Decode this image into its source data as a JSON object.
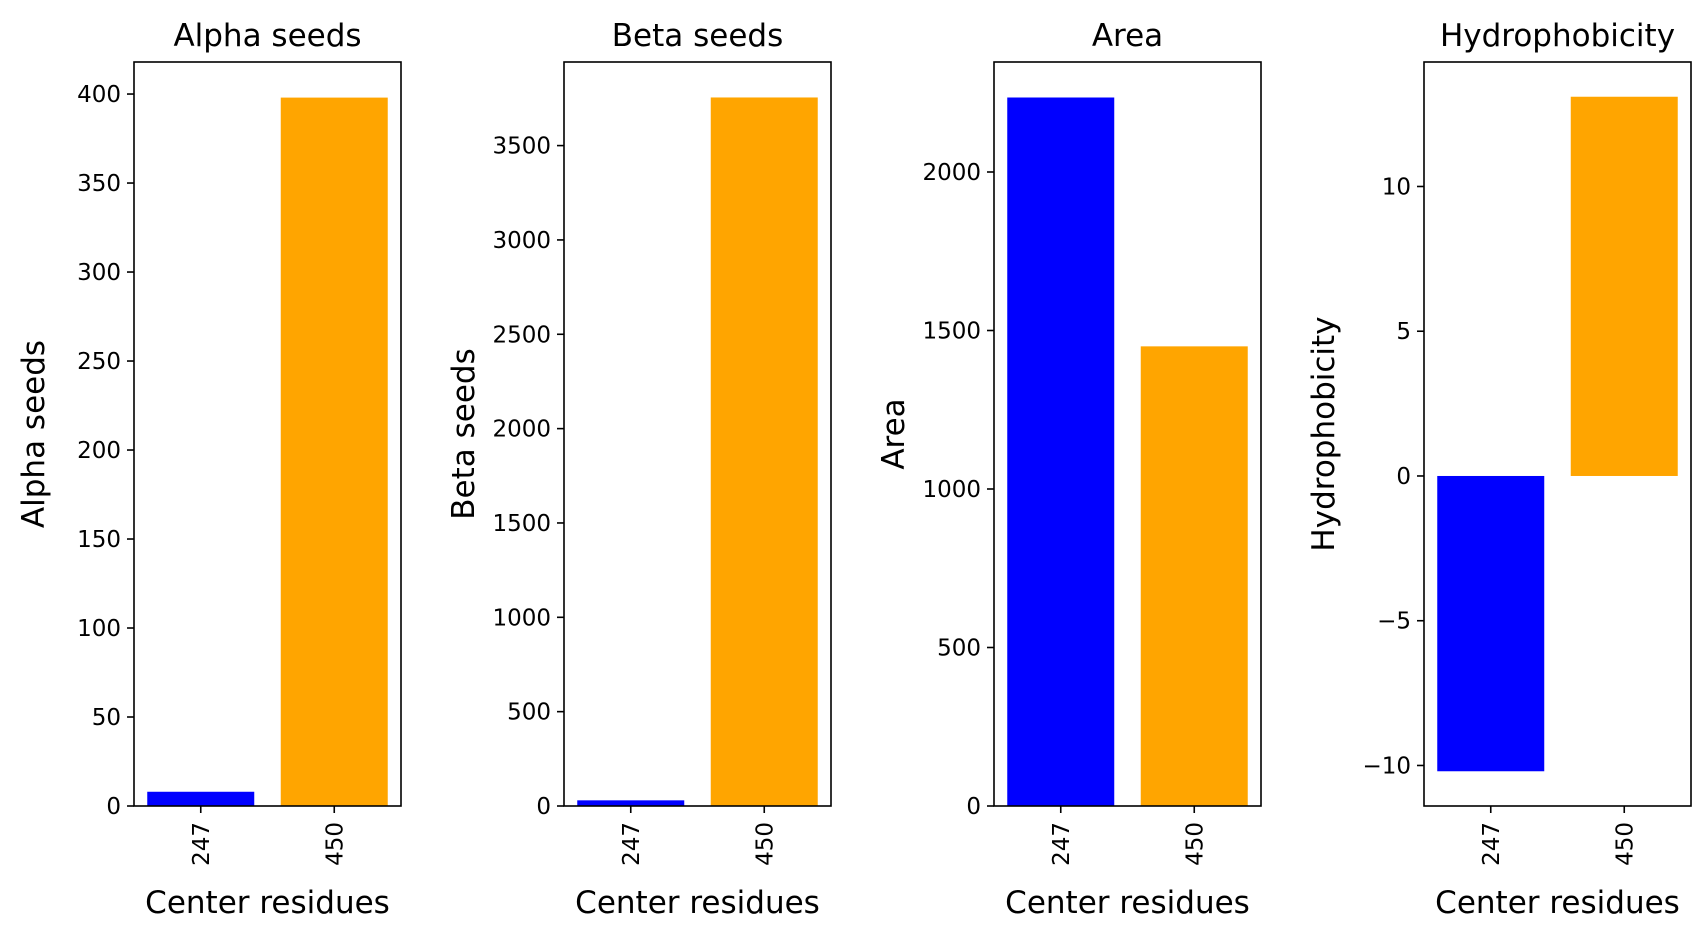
{
  "chart_data": [
    {
      "type": "bar",
      "title": "Alpha seeds",
      "xlabel": "Center residues",
      "ylabel": "Alpha seeds",
      "categories": [
        "247",
        "450"
      ],
      "values": [
        8,
        398
      ],
      "colors": [
        "#0000ff",
        "#ffa500"
      ],
      "ylim": [
        0,
        418
      ],
      "yticks": [
        0,
        50,
        100,
        150,
        200,
        250,
        300,
        350,
        400
      ],
      "ytick_labels": [
        "0",
        "50",
        "100",
        "150",
        "200",
        "250",
        "300",
        "350",
        "400"
      ]
    },
    {
      "type": "bar",
      "title": "Beta seeds",
      "xlabel": "Center residues",
      "ylabel": "Beta seeds",
      "categories": [
        "247",
        "450"
      ],
      "values": [
        30,
        3755
      ],
      "colors": [
        "#0000ff",
        "#ffa500"
      ],
      "ylim": [
        0,
        3943
      ],
      "yticks": [
        0,
        500,
        1000,
        1500,
        2000,
        2500,
        3000,
        3500
      ],
      "ytick_labels": [
        "0",
        "500",
        "1000",
        "1500",
        "2000",
        "2500",
        "3000",
        "3500"
      ]
    },
    {
      "type": "bar",
      "title": "Area",
      "xlabel": "Center residues",
      "ylabel": "Area",
      "categories": [
        "247",
        "450"
      ],
      "values": [
        2235,
        1450
      ],
      "colors": [
        "#0000ff",
        "#ffa500"
      ],
      "ylim": [
        0,
        2347
      ],
      "yticks": [
        0,
        500,
        1000,
        1500,
        2000
      ],
      "ytick_labels": [
        "0",
        "500",
        "1000",
        "1500",
        "2000"
      ]
    },
    {
      "type": "bar",
      "title": "Hydrophobicity",
      "xlabel": "Center residues",
      "ylabel": "Hydrophobicity",
      "categories": [
        "247",
        "450"
      ],
      "values": [
        -10.2,
        13.1
      ],
      "colors": [
        "#0000ff",
        "#ffa500"
      ],
      "ylim": [
        -11.4,
        14.3
      ],
      "yticks": [
        -10,
        -5,
        0,
        5,
        10
      ],
      "ytick_labels": [
        "−10",
        "−5",
        "0",
        "5",
        "10"
      ]
    }
  ]
}
